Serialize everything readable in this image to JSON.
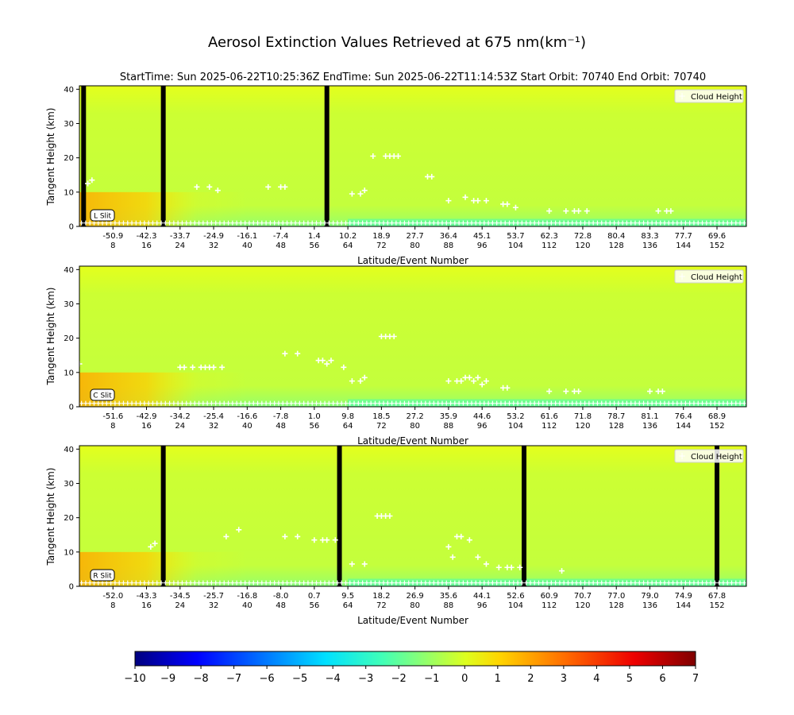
{
  "figure": {
    "title": "Aerosol Extinction Values Retrieved at 675 nm(km⁻¹)",
    "subtitle": "StartTime: Sun 2025-06-22T10:25:36Z  EndTime: Sun 2025-06-22T11:14:53Z  Start Orbit: 70740 End Orbit: 70740"
  },
  "colorbar": {
    "colormap": "jet",
    "range": [
      -10,
      7
    ],
    "ticks": [
      "−10",
      "−9",
      "−8",
      "−7",
      "−6",
      "−5",
      "−4",
      "−3",
      "−2",
      "−1",
      "0",
      "1",
      "2",
      "3",
      "4",
      "5",
      "6",
      "7"
    ]
  },
  "chart_data": [
    {
      "type": "heatmap",
      "slit_label": "L Slit",
      "legend": "Cloud Height",
      "legend_position": "top-right",
      "ylabel": "Tangent Height (km)",
      "xlabel": "Latitude/Event Number",
      "ylim": [
        0,
        41
      ],
      "yticks": [
        "0",
        "10",
        "20",
        "30",
        "40"
      ],
      "xlim": [
        0,
        159
      ],
      "latitude_ticks": [
        "-50.9",
        "-42.3",
        "-33.7",
        "-24.9",
        "-16.1",
        "-7.4",
        "1.4",
        "10.2",
        "18.9",
        "27.7",
        "36.4",
        "45.1",
        "53.7",
        "62.3",
        "72.8",
        "80.4",
        "83.3",
        "77.7",
        "69.6"
      ],
      "event_ticks": [
        "8",
        "16",
        "24",
        "32",
        "40",
        "48",
        "56",
        "64",
        "72",
        "80",
        "88",
        "96",
        "104",
        "112",
        "120",
        "128",
        "136",
        "144",
        "152"
      ],
      "event_tick_positions": [
        8,
        16,
        24,
        32,
        40,
        48,
        56,
        64,
        72,
        80,
        88,
        96,
        104,
        112,
        120,
        128,
        136,
        144,
        152
      ],
      "missing_events": [
        1,
        20,
        59
      ],
      "cloud_heights": [
        [
          2,
          12.5
        ],
        [
          3,
          13.5
        ],
        [
          28,
          11.5
        ],
        [
          31,
          11.5
        ],
        [
          33,
          10.5
        ],
        [
          45,
          11.5
        ],
        [
          48,
          11.5
        ],
        [
          49,
          11.5
        ],
        [
          65,
          9.5
        ],
        [
          67,
          9.5
        ],
        [
          68,
          10.5
        ],
        [
          70,
          20.5
        ],
        [
          73,
          20.5
        ],
        [
          74,
          20.5
        ],
        [
          75,
          20.5
        ],
        [
          76,
          20.5
        ],
        [
          83,
          14.5
        ],
        [
          84,
          14.5
        ],
        [
          88,
          7.5
        ],
        [
          92,
          8.5
        ],
        [
          94,
          7.5
        ],
        [
          95,
          7.5
        ],
        [
          97,
          7.5
        ],
        [
          101,
          6.5
        ],
        [
          102,
          6.5
        ],
        [
          104,
          5.5
        ],
        [
          112,
          4.5
        ],
        [
          116,
          4.5
        ],
        [
          118,
          4.5
        ],
        [
          119,
          4.5
        ],
        [
          121,
          4.5
        ],
        [
          138,
          4.5
        ],
        [
          140,
          4.5
        ],
        [
          141,
          4.5
        ]
      ]
    },
    {
      "type": "heatmap",
      "slit_label": "C Slit",
      "legend": "Cloud Height",
      "legend_position": "top-right",
      "ylabel": "Tangent Height (km)",
      "xlabel": "Latitude/Event Number",
      "ylim": [
        0,
        41
      ],
      "yticks": [
        "0",
        "10",
        "20",
        "30",
        "40"
      ],
      "xlim": [
        0,
        159
      ],
      "latitude_ticks": [
        "-51.6",
        "-42.9",
        "-34.2",
        "-25.4",
        "-16.6",
        "-7.8",
        "1.0",
        "9.8",
        "18.5",
        "27.2",
        "35.9",
        "44.6",
        "53.2",
        "61.6",
        "71.8",
        "78.7",
        "81.1",
        "76.4",
        "68.9"
      ],
      "event_ticks": [
        "8",
        "16",
        "24",
        "32",
        "40",
        "48",
        "56",
        "64",
        "72",
        "80",
        "88",
        "96",
        "104",
        "112",
        "120",
        "128",
        "136",
        "144",
        "152"
      ],
      "event_tick_positions": [
        8,
        16,
        24,
        32,
        40,
        48,
        56,
        64,
        72,
        80,
        88,
        96,
        104,
        112,
        120,
        128,
        136,
        144,
        152
      ],
      "missing_events": [],
      "cloud_heights": [
        [
          0,
          12.5
        ],
        [
          24,
          11.5
        ],
        [
          25,
          11.5
        ],
        [
          27,
          11.5
        ],
        [
          29,
          11.5
        ],
        [
          30,
          11.5
        ],
        [
          31,
          11.5
        ],
        [
          32,
          11.5
        ],
        [
          34,
          11.5
        ],
        [
          49,
          15.5
        ],
        [
          52,
          15.5
        ],
        [
          57,
          13.5
        ],
        [
          58,
          13.5
        ],
        [
          59,
          12.5
        ],
        [
          60,
          13.5
        ],
        [
          63,
          11.5
        ],
        [
          65,
          7.5
        ],
        [
          67,
          7.5
        ],
        [
          68,
          8.5
        ],
        [
          72,
          20.5
        ],
        [
          73,
          20.5
        ],
        [
          74,
          20.5
        ],
        [
          75,
          20.5
        ],
        [
          88,
          7.5
        ],
        [
          90,
          7.5
        ],
        [
          91,
          7.5
        ],
        [
          92,
          8.5
        ],
        [
          93,
          8.5
        ],
        [
          94,
          7.5
        ],
        [
          95,
          8.5
        ],
        [
          96,
          6.5
        ],
        [
          97,
          7.5
        ],
        [
          101,
          5.5
        ],
        [
          102,
          5.5
        ],
        [
          112,
          4.5
        ],
        [
          116,
          4.5
        ],
        [
          118,
          4.5
        ],
        [
          119,
          4.5
        ],
        [
          136,
          4.5
        ],
        [
          138,
          4.5
        ],
        [
          139,
          4.5
        ]
      ]
    },
    {
      "type": "heatmap",
      "slit_label": "R Slit",
      "legend": "Cloud Height",
      "legend_position": "top-right",
      "ylabel": "Tangent Height (km)",
      "xlabel": "Latitude/Event Number",
      "ylim": [
        0,
        41
      ],
      "yticks": [
        "0",
        "10",
        "20",
        "30",
        "40"
      ],
      "xlim": [
        0,
        159
      ],
      "latitude_ticks": [
        "-52.0",
        "-43.3",
        "-34.5",
        "-25.7",
        "-16.8",
        "-8.0",
        "0.7",
        "9.5",
        "18.2",
        "26.9",
        "35.6",
        "44.1",
        "52.6",
        "60.9",
        "70.7",
        "77.0",
        "79.0",
        "74.9",
        "67.8"
      ],
      "event_ticks": [
        "8",
        "16",
        "24",
        "32",
        "40",
        "48",
        "56",
        "64",
        "72",
        "80",
        "88",
        "96",
        "104",
        "112",
        "120",
        "128",
        "136",
        "144",
        "152"
      ],
      "event_tick_positions": [
        8,
        16,
        24,
        32,
        40,
        48,
        56,
        64,
        72,
        80,
        88,
        96,
        104,
        112,
        120,
        128,
        136,
        144,
        152
      ],
      "missing_events": [
        20,
        62,
        106,
        152
      ],
      "cloud_heights": [
        [
          17,
          11.5
        ],
        [
          18,
          12.5
        ],
        [
          35,
          14.5
        ],
        [
          38,
          16.5
        ],
        [
          49,
          14.5
        ],
        [
          52,
          14.5
        ],
        [
          56,
          13.5
        ],
        [
          58,
          13.5
        ],
        [
          59,
          13.5
        ],
        [
          61,
          13.5
        ],
        [
          65,
          6.5
        ],
        [
          68,
          6.5
        ],
        [
          71,
          20.5
        ],
        [
          72,
          20.5
        ],
        [
          73,
          20.5
        ],
        [
          74,
          20.5
        ],
        [
          88,
          11.5
        ],
        [
          89,
          8.5
        ],
        [
          90,
          14.5
        ],
        [
          91,
          14.5
        ],
        [
          93,
          13.5
        ],
        [
          95,
          8.5
        ],
        [
          97,
          6.5
        ],
        [
          100,
          5.5
        ],
        [
          102,
          5.5
        ],
        [
          103,
          5.5
        ],
        [
          105,
          5.5
        ],
        [
          115,
          4.5
        ]
      ]
    }
  ]
}
